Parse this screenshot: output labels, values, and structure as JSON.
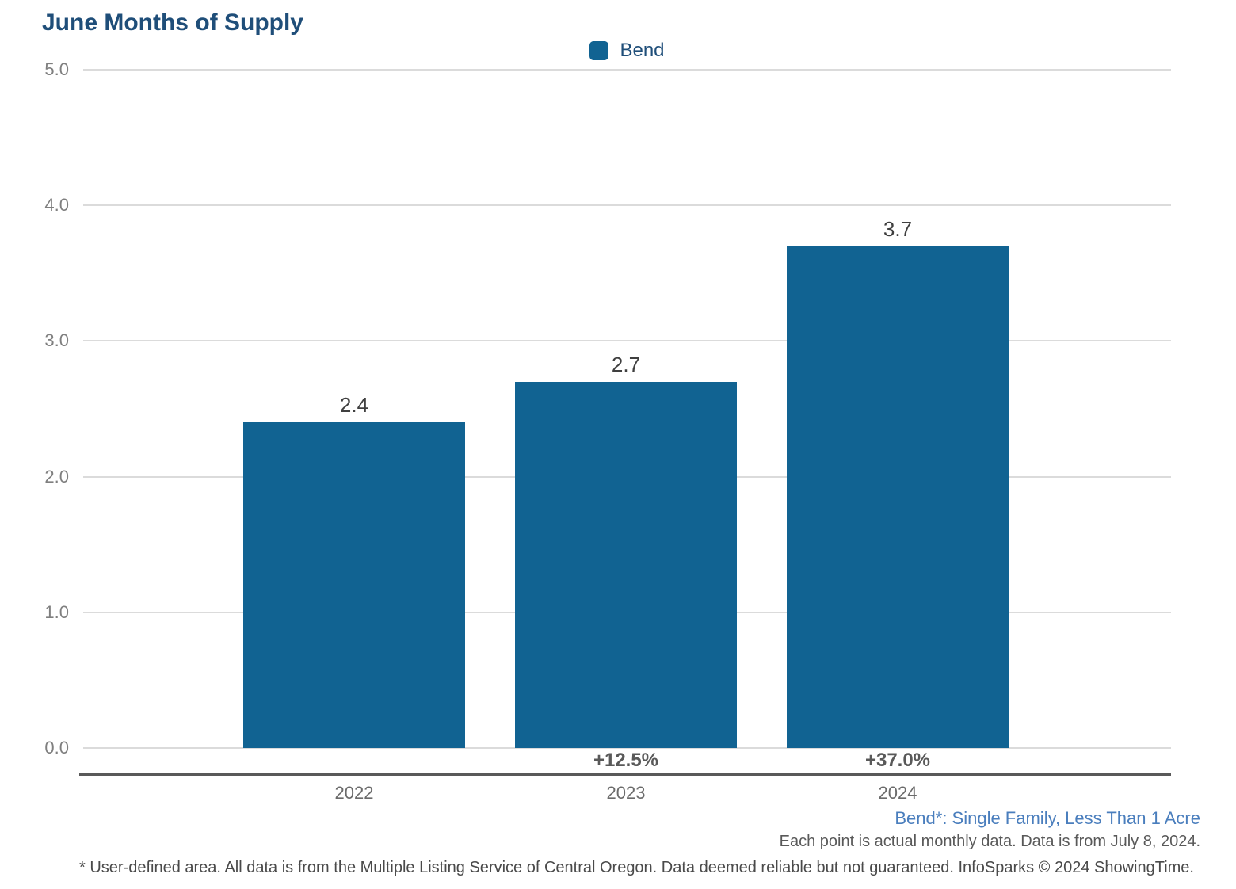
{
  "title": "June Months of Supply",
  "legend": {
    "label": "Bend"
  },
  "colors": {
    "bar": "#116392",
    "title_text": "#1F4E79",
    "grid": "#DBDBDB",
    "axis_line": "#595959",
    "attribution_blue": "#4A7EBD"
  },
  "chart_data": {
    "type": "bar",
    "title": "June Months of Supply",
    "categories": [
      "2022",
      "2023",
      "2024"
    ],
    "values": [
      2.4,
      2.7,
      3.7
    ],
    "value_labels": [
      "2.4",
      "2.7",
      "3.7"
    ],
    "pct_change": [
      "",
      "+12.5%",
      "+37.0%"
    ],
    "series_name": "Bend",
    "ylim": [
      0,
      5
    ],
    "yticks": [
      "5.0",
      "4.0",
      "3.0",
      "2.0",
      "1.0",
      "0.0"
    ],
    "grid": true,
    "legend_position": "top-center"
  },
  "attribution": {
    "line1": "Bend*: Single Family, Less Than 1 Acre",
    "line2": "Each point is actual monthly data. Data is from July 8, 2024."
  },
  "footnote": "* User-defined area. All data is from the Multiple Listing Service of Central Oregon. Data deemed reliable but not guaranteed. InfoSparks © 2024 ShowingTime."
}
